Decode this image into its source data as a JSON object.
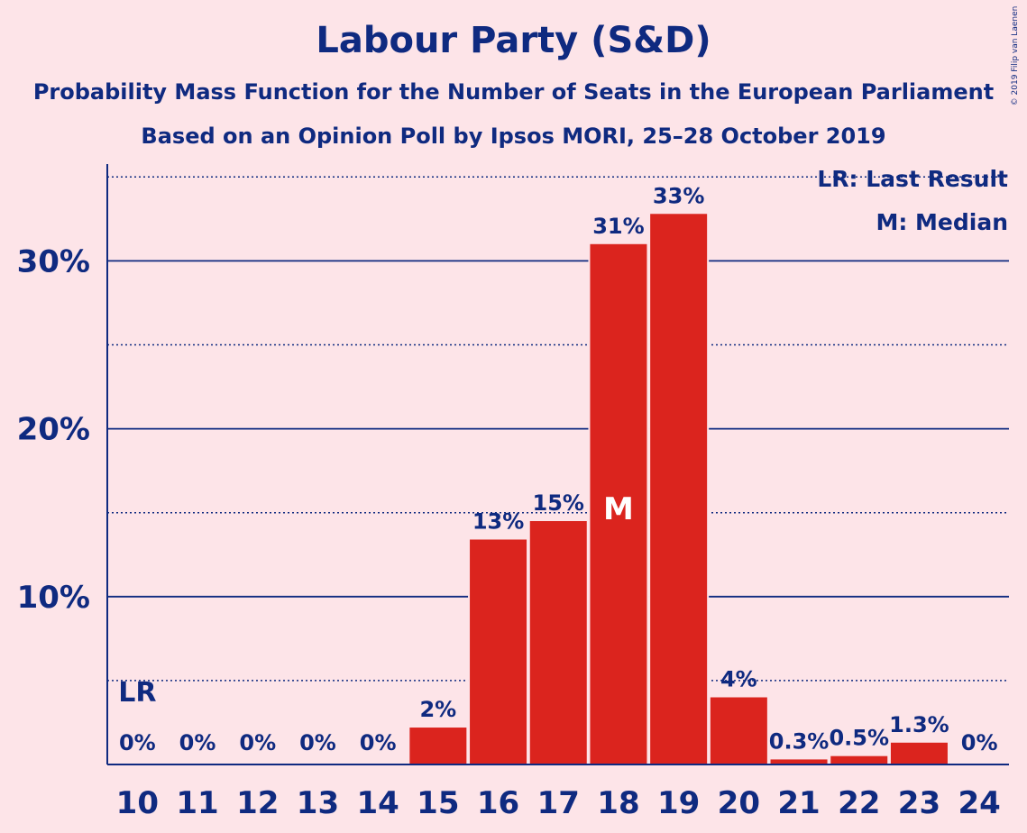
{
  "chart_data": {
    "type": "bar",
    "title": "Labour Party (S&D)",
    "subtitle": "Probability Mass Function for the Number of Seats in the European Parliament",
    "subtitle2": "Based on an Opinion Poll by Ipsos MORI, 25–28 October 2019",
    "categories": [
      "10",
      "11",
      "12",
      "13",
      "14",
      "15",
      "16",
      "17",
      "18",
      "19",
      "20",
      "21",
      "22",
      "23",
      "24"
    ],
    "values": [
      0,
      0,
      0,
      0,
      0,
      2.2,
      13.4,
      14.5,
      31.0,
      32.8,
      4.0,
      0.3,
      0.5,
      1.3,
      0
    ],
    "data_labels": [
      "0%",
      "0%",
      "0%",
      "0%",
      "0%",
      "2%",
      "13%",
      "15%",
      "31%",
      "33%",
      "4%",
      "0.3%",
      "0.5%",
      "1.3%",
      "0%"
    ],
    "y_ticks": [
      10,
      20,
      30
    ],
    "y_tick_labels": [
      "10%",
      "20%",
      "30%"
    ],
    "ylim": [
      0,
      35.5
    ],
    "grid": true,
    "last_result_category": "10",
    "last_result_marker": "LR",
    "median_category": "18",
    "median_marker": "M",
    "legend": [
      "LR: Last Result",
      "M: Median"
    ],
    "legend_position": "top-right",
    "copyright": "© 2019 Filip van Laenen"
  },
  "colors": {
    "background": "#fde4e8",
    "bar": "#db241e",
    "text": "#0f2a80"
  }
}
